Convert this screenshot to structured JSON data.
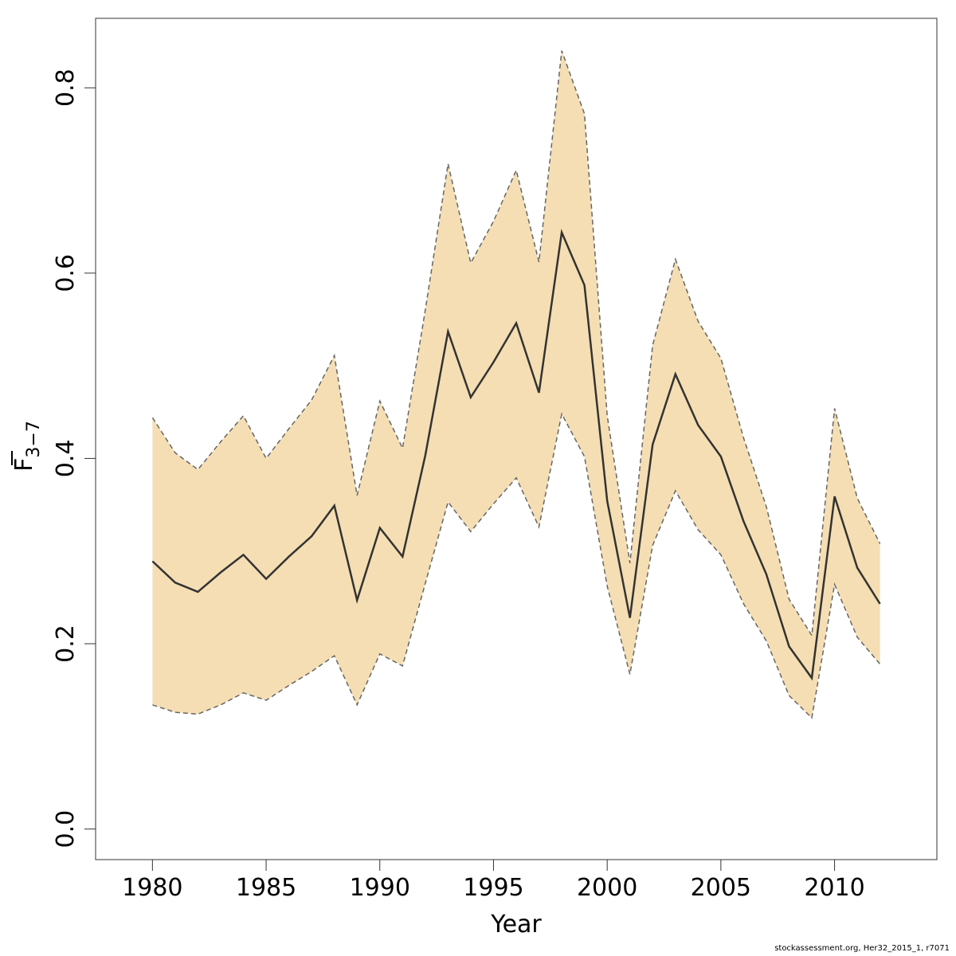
{
  "chart_data": {
    "type": "line",
    "xlabel": "Year",
    "ylabel": {
      "main": "F",
      "subscript": "3−7",
      "overbar": true
    },
    "xlim": [
      1977.5,
      2014.5
    ],
    "ylim": [
      -0.033,
      0.875
    ],
    "xticks": [
      1980,
      1985,
      1990,
      1995,
      2000,
      2005,
      2010
    ],
    "yticks": [
      0.0,
      0.2,
      0.4,
      0.6,
      0.8
    ],
    "ytick_labels": [
      "0.0",
      "0.2",
      "0.4",
      "0.6",
      "0.8"
    ],
    "x": [
      1980,
      1981,
      1982,
      1983,
      1984,
      1985,
      1986,
      1987,
      1988,
      1989,
      1990,
      1991,
      1992,
      1993,
      1994,
      1995,
      1996,
      1997,
      1998,
      1999,
      2000,
      2001,
      2002,
      2003,
      2004,
      2005,
      2006,
      2007,
      2008,
      2009,
      2010,
      2011,
      2012
    ],
    "series": [
      {
        "role": "estimate",
        "values": [
          0.289,
          0.266,
          0.256,
          0.277,
          0.296,
          0.27,
          0.294,
          0.316,
          0.349,
          0.247,
          0.325,
          0.294,
          0.403,
          0.537,
          0.466,
          0.504,
          0.546,
          0.471,
          0.644,
          0.587,
          0.354,
          0.228,
          0.415,
          0.491,
          0.436,
          0.402,
          0.332,
          0.275,
          0.197,
          0.163,
          0.359,
          0.282,
          0.243
        ]
      },
      {
        "role": "upper",
        "values": [
          0.444,
          0.406,
          0.388,
          0.418,
          0.446,
          0.4,
          0.432,
          0.463,
          0.511,
          0.36,
          0.462,
          0.411,
          0.56,
          0.718,
          0.611,
          0.656,
          0.711,
          0.612,
          0.84,
          0.772,
          0.446,
          0.287,
          0.522,
          0.615,
          0.548,
          0.508,
          0.422,
          0.348,
          0.248,
          0.209,
          0.454,
          0.357,
          0.308
        ]
      },
      {
        "role": "lower",
        "values": [
          0.134,
          0.126,
          0.124,
          0.134,
          0.147,
          0.139,
          0.155,
          0.17,
          0.187,
          0.134,
          0.189,
          0.176,
          0.265,
          0.353,
          0.321,
          0.351,
          0.379,
          0.326,
          0.448,
          0.402,
          0.262,
          0.167,
          0.306,
          0.365,
          0.323,
          0.296,
          0.243,
          0.203,
          0.144,
          0.12,
          0.264,
          0.207,
          0.178
        ]
      }
    ],
    "band_color": "#f5deb3",
    "line_color": "#333333",
    "bound_color": "#666666",
    "grid": false
  },
  "footer": "stockassessment.org, Her32_2015_1, r7071"
}
